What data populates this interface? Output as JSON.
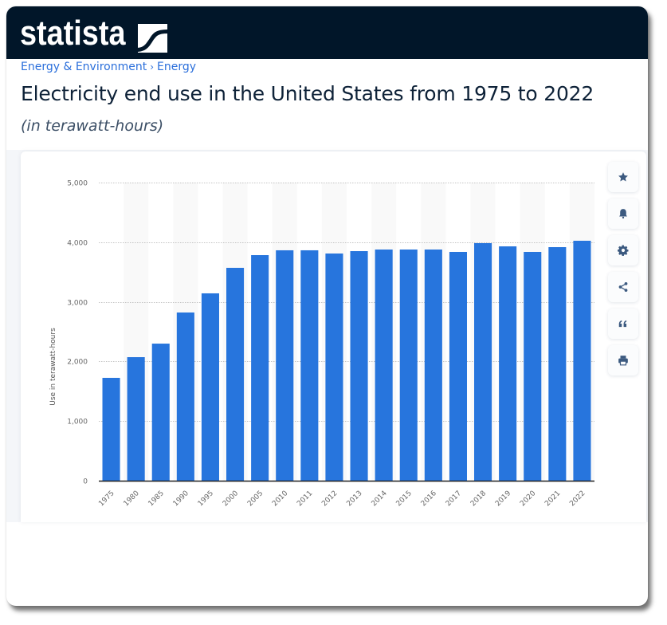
{
  "brand": {
    "name": "statista",
    "header_color": "#011629"
  },
  "breadcrumb": {
    "items": [
      "Energy & Environment",
      "Energy"
    ],
    "separator": "›"
  },
  "page": {
    "title": "Electricity end use in the United States from 1975 to 2022",
    "subtitle": "(in terawatt-hours)"
  },
  "toolbar": {
    "buttons": [
      {
        "name": "favorite",
        "icon": "star-icon"
      },
      {
        "name": "notification",
        "icon": "bell-icon"
      },
      {
        "name": "settings",
        "icon": "gear-icon"
      },
      {
        "name": "share",
        "icon": "share-icon"
      },
      {
        "name": "cite",
        "icon": "quote-icon"
      },
      {
        "name": "print",
        "icon": "printer-icon"
      }
    ],
    "icon_color": "#3c5a80"
  },
  "chart_data": {
    "type": "bar",
    "title": "Electricity end use in the United States from 1975 to 2022",
    "subtitle": "(in terawatt-hours)",
    "xlabel": "",
    "ylabel": "Use in terawatt-hours",
    "categories": [
      "1975",
      "1980",
      "1985",
      "1990",
      "1995",
      "2000",
      "2005",
      "2010",
      "2011",
      "2012",
      "2013",
      "2014",
      "2015",
      "2016",
      "2017",
      "2018",
      "2019",
      "2020",
      "2021",
      "2022"
    ],
    "values": [
      1725,
      2072,
      2299,
      2821,
      3142,
      3570,
      3783,
      3864,
      3864,
      3810,
      3850,
      3877,
      3877,
      3877,
      3837,
      3984,
      3930,
      3837,
      3917,
      4024
    ],
    "ylim": [
      0,
      5000
    ],
    "yticks": [
      0,
      1000,
      2000,
      3000,
      4000,
      5000
    ],
    "ytick_labels": [
      "0",
      "1,000",
      "2,000",
      "3,000",
      "4,000",
      "5,000"
    ],
    "grid": true,
    "legend": "none",
    "bar_color": "#2775dd",
    "stripe_color": "#f9f9f9"
  }
}
